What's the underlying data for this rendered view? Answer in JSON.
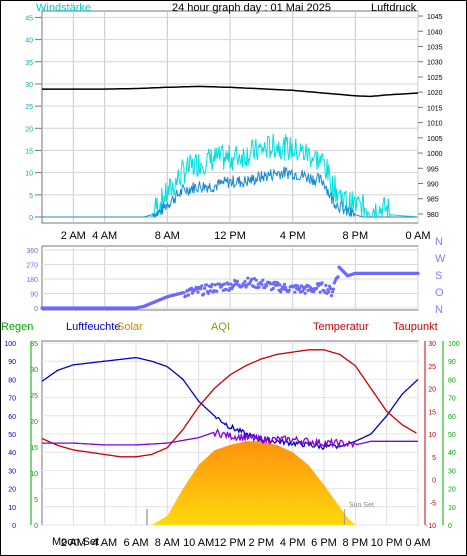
{
  "top": {
    "title": "24 hour graph day : 01 Mai 2025",
    "wind_label": "Windstärke",
    "pressure_label": "Luftdruck"
  },
  "direction": {
    "labels": [
      "N",
      "W",
      "S",
      "O",
      "N"
    ]
  },
  "bottom": {
    "regen_label": "Regen",
    "humidity_label": "Luftfeuchte",
    "solar_label": "Solar",
    "aqi_label": "AQI",
    "temp_label": "Temperatur",
    "dew_label": "Taupunkt",
    "moonset_label": "Moon Set",
    "sunset_label": "Sun Set"
  },
  "colors": {
    "wind": "#00e0e0",
    "pressure": "#000000",
    "direction": "#6a6aff",
    "humidity": "#0000cc",
    "temperature": "#cc0000",
    "dewpoint": "#8800dd",
    "solar_top": "#ffd700",
    "solar_bottom": "#ff8c00",
    "rain_axis": "#00aa00",
    "wind_axis": "#00b0b0"
  },
  "chart_data": [
    {
      "type": "line",
      "title": "24 hour graph day : 01 Mai 2025",
      "x_tick_labels": [
        "2 AM",
        "4 AM",
        "8 AM",
        "12 PM",
        "4 PM",
        "8 PM",
        "0 AM"
      ],
      "x_tick_hours": [
        2,
        4,
        8,
        12,
        16,
        20,
        24
      ],
      "left_axis": {
        "label": "Windstärke",
        "ticks": [
          0,
          5,
          10,
          15,
          20,
          25,
          30,
          35,
          40,
          45
        ],
        "range": [
          0,
          46
        ]
      },
      "right_axis": {
        "label": "Luftdruck",
        "ticks": [
          980,
          985,
          990,
          995,
          1000,
          1005,
          1010,
          1015,
          1020,
          1025,
          1030,
          1035,
          1040,
          1045
        ],
        "range": [
          979,
          1046
        ]
      },
      "series": [
        {
          "name": "Luftdruck",
          "axis": "right",
          "points": [
            [
              0,
              1021
            ],
            [
              2,
              1021
            ],
            [
              4,
              1021
            ],
            [
              6,
              1021.2
            ],
            [
              8,
              1021.6
            ],
            [
              10,
              1021.9
            ],
            [
              12,
              1021.6
            ],
            [
              14,
              1021.1
            ],
            [
              16,
              1020.6
            ],
            [
              18,
              1019.7
            ],
            [
              20,
              1018.8
            ],
            [
              21,
              1018.6
            ],
            [
              22,
              1019.1
            ],
            [
              24,
              1019.7
            ]
          ]
        },
        {
          "name": "Windstärke",
          "axis": "left",
          "points": [
            [
              0,
              0
            ],
            [
              6.5,
              0
            ],
            [
              7.5,
              1
            ],
            [
              8,
              3
            ],
            [
              9,
              6
            ],
            [
              10,
              7
            ],
            [
              11,
              7
            ],
            [
              12,
              8
            ],
            [
              13,
              8
            ],
            [
              14,
              9
            ],
            [
              15,
              10
            ],
            [
              16,
              10
            ],
            [
              17,
              9
            ],
            [
              18,
              8
            ],
            [
              18.5,
              4
            ],
            [
              19.5,
              1
            ],
            [
              20.5,
              0
            ],
            [
              24,
              0
            ]
          ]
        },
        {
          "name": "Windböen",
          "axis": "left",
          "points": [
            [
              0,
              0
            ],
            [
              7,
              0
            ],
            [
              8,
              4
            ],
            [
              9,
              9
            ],
            [
              10,
              11
            ],
            [
              11,
              12
            ],
            [
              12,
              12
            ],
            [
              13,
              13
            ],
            [
              14,
              14
            ],
            [
              15,
              15
            ],
            [
              16,
              14
            ],
            [
              17,
              13
            ],
            [
              18,
              11
            ],
            [
              18.5,
              6
            ],
            [
              19.5,
              2
            ],
            [
              20.5,
              1
            ],
            [
              24,
              0
            ]
          ]
        }
      ]
    },
    {
      "type": "scatter",
      "title": "",
      "y_ticks": [
        0,
        90,
        180,
        270,
        360
      ],
      "range": [
        0,
        360
      ],
      "right_labels": [
        "N",
        "W",
        "S",
        "O",
        "N"
      ],
      "series": [
        {
          "name": "Windrichtung",
          "points": [
            [
              0,
              0
            ],
            [
              6,
              0
            ],
            [
              6.5,
              10
            ],
            [
              7,
              30
            ],
            [
              8,
              70
            ],
            [
              9,
              95
            ],
            [
              10,
              105
            ],
            [
              11,
              125
            ],
            [
              12,
              140
            ],
            [
              13,
              160
            ],
            [
              14,
              150
            ],
            [
              15,
              130
            ],
            [
              16,
              120
            ],
            [
              17,
              115
            ],
            [
              18,
              130
            ],
            [
              18.5,
              100
            ],
            [
              19,
              250
            ],
            [
              19.5,
              200
            ],
            [
              20,
              215
            ],
            [
              24,
              215
            ]
          ]
        }
      ]
    },
    {
      "type": "line",
      "title": "",
      "x_tick_labels": [
        "2 AM",
        "4 AM",
        "6 AM",
        "8 AM",
        "10 AM",
        "12 PM",
        "2 PM",
        "4 PM",
        "6 PM",
        "8 PM",
        "10 PM",
        "0 AM"
      ],
      "left_axis_humidity": {
        "label": "Luftfeuchte",
        "ticks": [
          0,
          10,
          20,
          30,
          40,
          50,
          60,
          70,
          80,
          90,
          100
        ],
        "range": [
          0,
          100
        ]
      },
      "left_axis_rain": {
        "label": "Regen",
        "ticks": [
          0,
          5,
          10,
          15,
          20,
          25,
          30,
          35
        ],
        "range": [
          0,
          35
        ]
      },
      "right_axis_temp": {
        "label": "Temperatur",
        "ticks": [
          -10,
          -5,
          0,
          5,
          10,
          15,
          20,
          25,
          30
        ],
        "range": [
          -10,
          30
        ]
      },
      "right_axis_dew": {
        "label": "Taupunkt",
        "ticks": [
          0,
          10,
          20,
          30,
          40,
          50,
          60,
          70,
          80,
          90,
          100
        ],
        "range": [
          0,
          100
        ]
      },
      "series": [
        {
          "name": "Luftfeuchte",
          "axis": "humidity",
          "points": [
            [
              0,
              79
            ],
            [
              1,
              85
            ],
            [
              2,
              88
            ],
            [
              3,
              89
            ],
            [
              4,
              90
            ],
            [
              5,
              91
            ],
            [
              6,
              92
            ],
            [
              7,
              90
            ],
            [
              8,
              87
            ],
            [
              9,
              80
            ],
            [
              10,
              68
            ],
            [
              11,
              60
            ],
            [
              12,
              54
            ],
            [
              13,
              50
            ],
            [
              14,
              47
            ],
            [
              15,
              46
            ],
            [
              16,
              45
            ],
            [
              17,
              44
            ],
            [
              18,
              43
            ],
            [
              19,
              43
            ],
            [
              20,
              46
            ],
            [
              21,
              50
            ],
            [
              22,
              60
            ],
            [
              23,
              72
            ],
            [
              24,
              80
            ]
          ]
        },
        {
          "name": "Temperatur",
          "axis": "temp",
          "points": [
            [
              0,
              9
            ],
            [
              1,
              7.5
            ],
            [
              2,
              6.5
            ],
            [
              3,
              6
            ],
            [
              4,
              5.5
            ],
            [
              5,
              5
            ],
            [
              6,
              5
            ],
            [
              7,
              5.5
            ],
            [
              8,
              7
            ],
            [
              9,
              11
            ],
            [
              10,
              16
            ],
            [
              11,
              20
            ],
            [
              12,
              23
            ],
            [
              13,
              25
            ],
            [
              14,
              26.5
            ],
            [
              15,
              27.5
            ],
            [
              16,
              28
            ],
            [
              17,
              28.5
            ],
            [
              18,
              28.5
            ],
            [
              19,
              27.5
            ],
            [
              20,
              25
            ],
            [
              21,
              20
            ],
            [
              22,
              15
            ],
            [
              23,
              12
            ],
            [
              24,
              10
            ]
          ]
        },
        {
          "name": "Taupunkt",
          "axis": "dew",
          "points": [
            [
              0,
              45
            ],
            [
              2,
              45
            ],
            [
              4,
              44
            ],
            [
              6,
              44
            ],
            [
              8,
              45
            ],
            [
              10,
              48
            ],
            [
              11,
              51
            ],
            [
              12,
              49
            ],
            [
              14,
              47
            ],
            [
              16,
              47
            ],
            [
              18,
              45
            ],
            [
              19,
              45
            ],
            [
              20,
              44
            ],
            [
              21,
              46
            ],
            [
              22,
              46
            ],
            [
              24,
              46
            ]
          ]
        },
        {
          "name": "Solar",
          "axis": "humidity",
          "points": [
            [
              0,
              0
            ],
            [
              7,
              0
            ],
            [
              8,
              5
            ],
            [
              9,
              20
            ],
            [
              10,
              33
            ],
            [
              11,
              41
            ],
            [
              12,
              44
            ],
            [
              13,
              46
            ],
            [
              14,
              46
            ],
            [
              15,
              44
            ],
            [
              16,
              40
            ],
            [
              17,
              33
            ],
            [
              18,
              22
            ],
            [
              19,
              10
            ],
            [
              19.5,
              4
            ],
            [
              20,
              0
            ],
            [
              24,
              0
            ]
          ]
        }
      ]
    }
  ]
}
